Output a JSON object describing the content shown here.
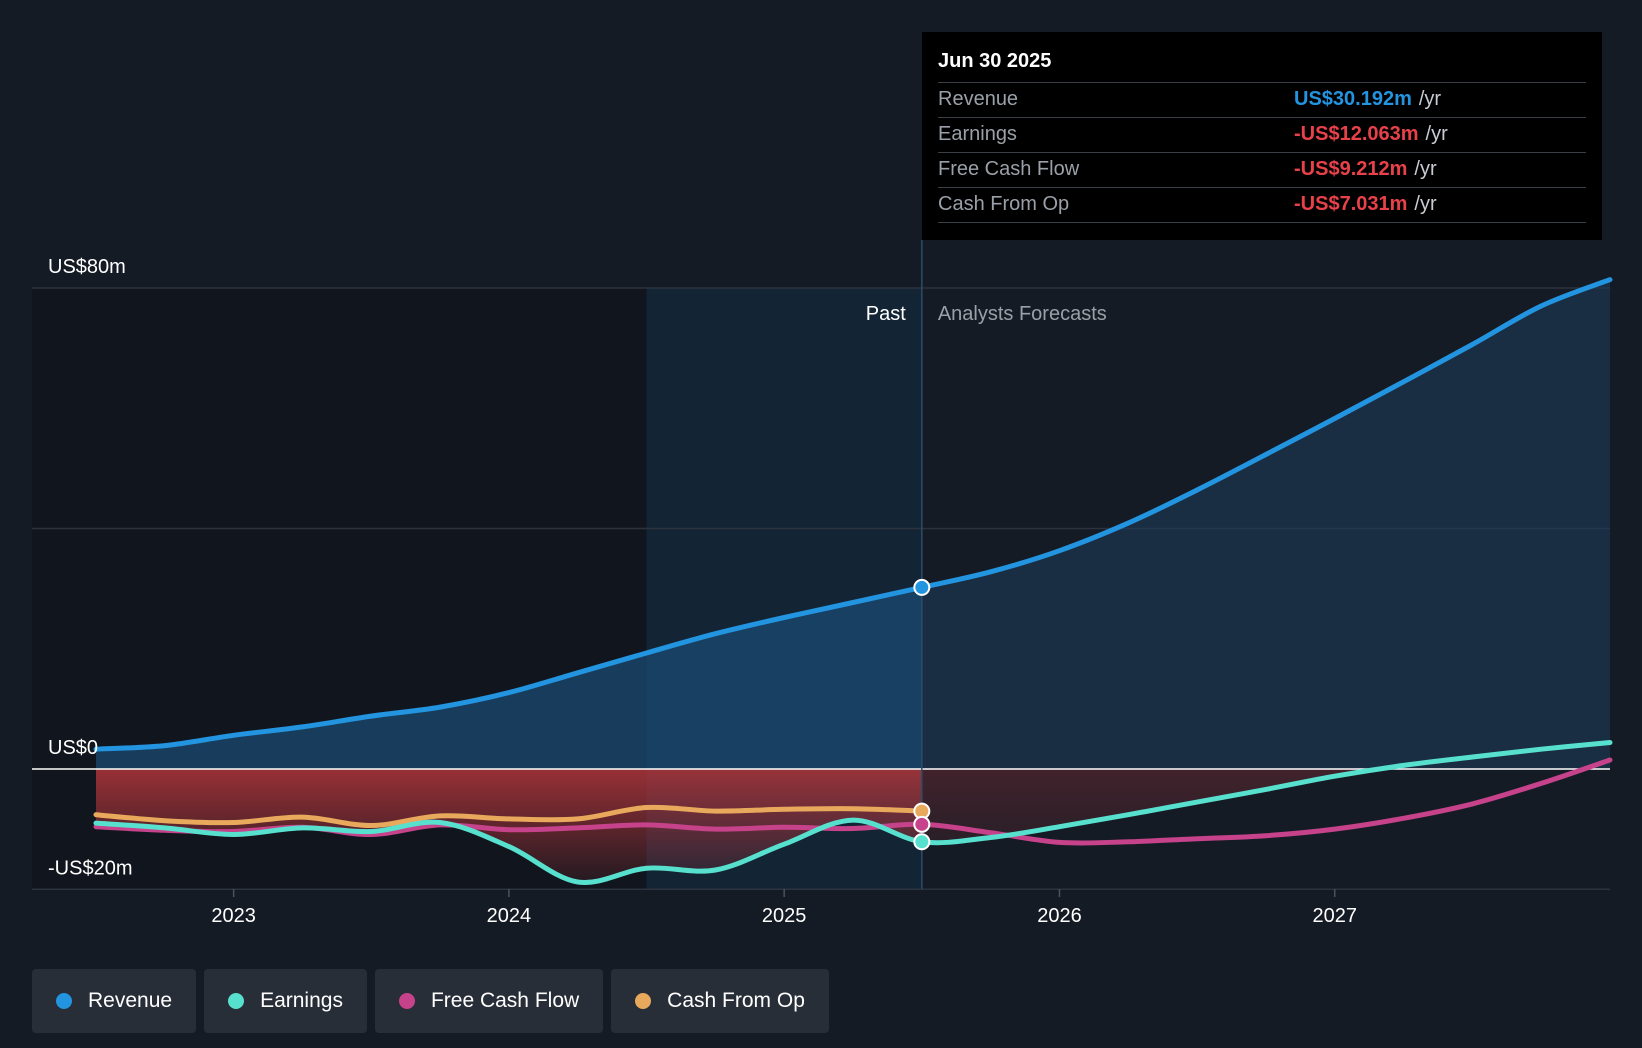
{
  "chart_data": {
    "type": "area",
    "y_ticks": [
      {
        "label": "US$80m",
        "value": 80
      },
      {
        "label": "US$0",
        "value": 0
      },
      {
        "label": "-US$20m",
        "value": -20
      }
    ],
    "x_ticks": [
      "2023",
      "2024",
      "2025",
      "2026",
      "2027"
    ],
    "ylim": [
      -20,
      80
    ],
    "xlim": [
      2022.5,
      2028.0
    ],
    "period_labels": {
      "past": "Past",
      "forecast": "Analysts Forecasts"
    },
    "past_end": 2025.5,
    "highlight_start": 2024.5,
    "grid": true,
    "legend_position": "bottom",
    "series": [
      {
        "name": "Revenue",
        "color": "#2394df",
        "points": [
          [
            2022.5,
            3.3
          ],
          [
            2022.75,
            3.9
          ],
          [
            2023.0,
            5.6
          ],
          [
            2023.25,
            7.0
          ],
          [
            2023.5,
            8.8
          ],
          [
            2023.75,
            10.3
          ],
          [
            2024.0,
            12.7
          ],
          [
            2024.25,
            16.0
          ],
          [
            2024.5,
            19.3
          ],
          [
            2024.75,
            22.5
          ],
          [
            2025.0,
            25.2
          ],
          [
            2025.25,
            27.7
          ],
          [
            2025.5,
            30.2
          ],
          [
            2025.75,
            32.8
          ],
          [
            2026.0,
            36.3
          ],
          [
            2026.25,
            40.9
          ],
          [
            2026.5,
            46.4
          ],
          [
            2026.75,
            52.3
          ],
          [
            2027.0,
            58.3
          ],
          [
            2027.25,
            64.4
          ],
          [
            2027.5,
            70.6
          ],
          [
            2027.75,
            77.0
          ],
          [
            2028.0,
            81.4
          ]
        ]
      },
      {
        "name": "Earnings",
        "color": "#58e0ce",
        "points": [
          [
            2022.5,
            -9.0
          ],
          [
            2022.75,
            -9.8
          ],
          [
            2023.0,
            -10.9
          ],
          [
            2023.25,
            -9.8
          ],
          [
            2023.5,
            -10.4
          ],
          [
            2023.75,
            -8.9
          ],
          [
            2024.0,
            -12.9
          ],
          [
            2024.25,
            -18.8
          ],
          [
            2024.5,
            -16.5
          ],
          [
            2024.75,
            -16.8
          ],
          [
            2025.0,
            -12.5
          ],
          [
            2025.25,
            -8.5
          ],
          [
            2025.5,
            -12.1
          ],
          [
            2025.75,
            -11.4
          ],
          [
            2026.0,
            -9.6
          ],
          [
            2026.25,
            -7.6
          ],
          [
            2026.5,
            -5.5
          ],
          [
            2026.75,
            -3.4
          ],
          [
            2027.0,
            -1.2
          ],
          [
            2027.25,
            0.6
          ],
          [
            2027.5,
            2.0
          ],
          [
            2027.75,
            3.3
          ],
          [
            2028.0,
            4.4
          ]
        ]
      },
      {
        "name": "Free Cash Flow",
        "color": "#c6428a",
        "points": [
          [
            2022.5,
            -9.6
          ],
          [
            2022.75,
            -10.2
          ],
          [
            2023.0,
            -10.4
          ],
          [
            2023.25,
            -9.7
          ],
          [
            2023.5,
            -10.9
          ],
          [
            2023.75,
            -9.3
          ],
          [
            2024.0,
            -10.1
          ],
          [
            2024.25,
            -9.8
          ],
          [
            2024.5,
            -9.3
          ],
          [
            2024.75,
            -10.0
          ],
          [
            2025.0,
            -9.7
          ],
          [
            2025.25,
            -9.9
          ],
          [
            2025.5,
            -9.2
          ],
          [
            2025.75,
            -10.6
          ],
          [
            2026.0,
            -12.2
          ],
          [
            2026.25,
            -12.1
          ],
          [
            2026.5,
            -11.6
          ],
          [
            2026.75,
            -11.1
          ],
          [
            2027.0,
            -10.0
          ],
          [
            2027.25,
            -8.2
          ],
          [
            2027.5,
            -5.8
          ],
          [
            2027.75,
            -2.4
          ],
          [
            2028.0,
            1.5
          ]
        ]
      },
      {
        "name": "Cash From Op",
        "color": "#e8a95c",
        "points": [
          [
            2022.5,
            -7.6
          ],
          [
            2022.75,
            -8.6
          ],
          [
            2023.0,
            -8.9
          ],
          [
            2023.25,
            -8.0
          ],
          [
            2023.5,
            -9.4
          ],
          [
            2023.75,
            -7.8
          ],
          [
            2024.0,
            -8.3
          ],
          [
            2024.25,
            -8.3
          ],
          [
            2024.5,
            -6.4
          ],
          [
            2024.75,
            -7.0
          ],
          [
            2025.0,
            -6.7
          ],
          [
            2025.25,
            -6.6
          ],
          [
            2025.5,
            -7.0
          ]
        ]
      }
    ]
  },
  "tooltip": {
    "date": "Jun 30 2025",
    "rows": [
      {
        "label": "Revenue",
        "value": "US$30.192m",
        "unit": "/yr",
        "color": "#2394df"
      },
      {
        "label": "Earnings",
        "value": "-US$12.063m",
        "unit": "/yr",
        "color": "#e8414a"
      },
      {
        "label": "Free Cash Flow",
        "value": "-US$9.212m",
        "unit": "/yr",
        "color": "#e8414a"
      },
      {
        "label": "Cash From Op",
        "value": "-US$7.031m",
        "unit": "/yr",
        "color": "#e8414a"
      }
    ]
  },
  "legend": [
    {
      "label": "Revenue",
      "color": "#2394df"
    },
    {
      "label": "Earnings",
      "color": "#58e0ce"
    },
    {
      "label": "Free Cash Flow",
      "color": "#c6428a"
    },
    {
      "label": "Cash From Op",
      "color": "#e8a95c"
    }
  ]
}
